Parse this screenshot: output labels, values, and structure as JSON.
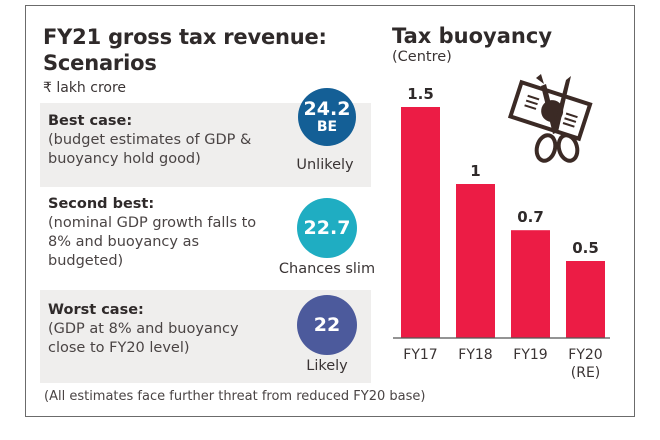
{
  "left_panel": {
    "title": "FY21 gross tax revenue: Scenarios",
    "unit": "₹ lakh crore",
    "scenarios": [
      {
        "heading": "Best case:",
        "description": "(budget estimates of GDP & buoyancy hold good)",
        "value": "24.2",
        "value_sub": "BE",
        "likelihood": "Unlikely",
        "color": "#145f96"
      },
      {
        "heading": "Second best:",
        "description": "(nominal GDP growth falls to 8% and buoyancy as budgeted)",
        "value": "22.7",
        "value_sub": "",
        "likelihood": "Chances slim",
        "color": "#1fadc2"
      },
      {
        "heading": "Worst case:",
        "description": "(GDP at 8% and buoyancy close to FY20 level)",
        "value": "22",
        "value_sub": "",
        "likelihood": "Likely",
        "color": "#4c5a9c"
      }
    ],
    "footnote": "(All estimates face further threat from reduced FY20 base)"
  },
  "icon": {
    "name": "scissors-cutting-banknote-icon"
  },
  "chart_data": {
    "type": "bar",
    "title": "Tax buoyancy",
    "subtitle": "(Centre)",
    "categories": [
      "FY17",
      "FY18",
      "FY19",
      "FY20 (RE)"
    ],
    "category_lines": [
      [
        "FY17"
      ],
      [
        "FY18"
      ],
      [
        "FY19"
      ],
      [
        "FY20",
        "(RE)"
      ]
    ],
    "values": [
      1.5,
      1,
      0.7,
      0.5
    ],
    "data_labels": [
      "1.5",
      "1",
      "0.7",
      "0.5"
    ],
    "xlabel": "",
    "ylabel": "",
    "ylim": [
      0,
      1.5
    ],
    "grid": false,
    "legend": "none",
    "bar_color": "#ec1c45"
  }
}
